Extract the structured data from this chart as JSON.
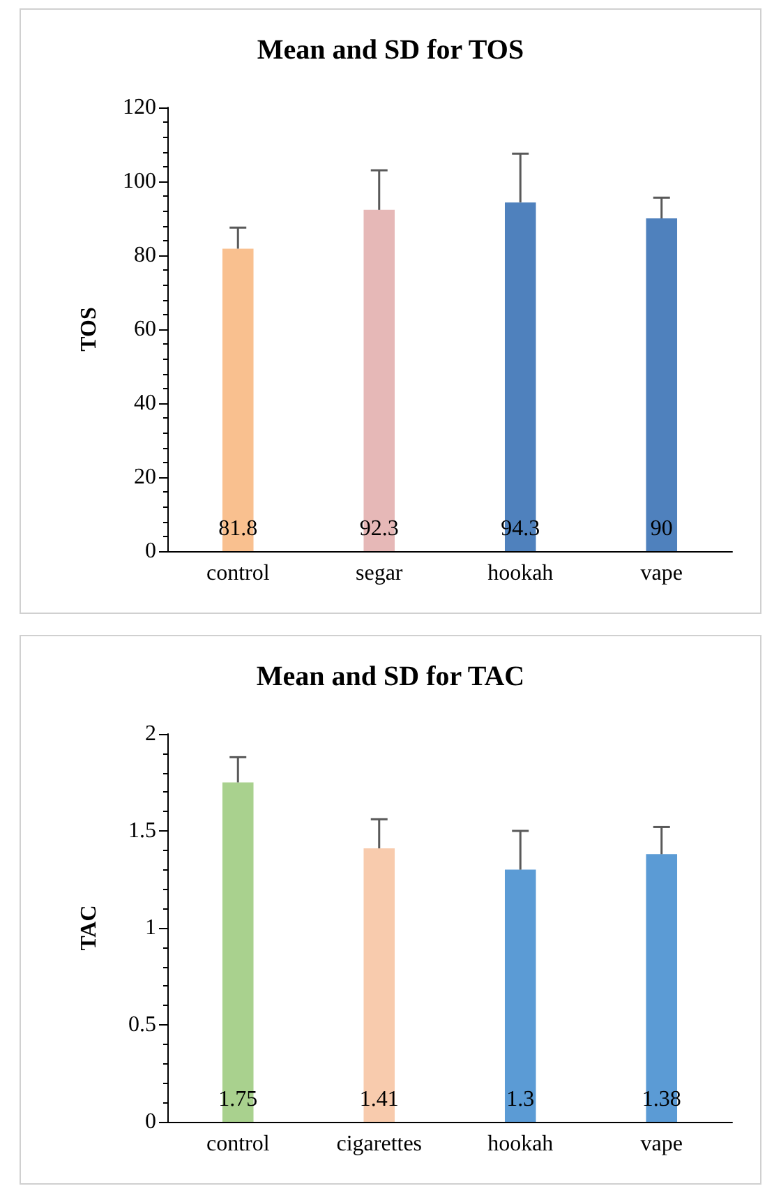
{
  "chart_data": [
    {
      "type": "bar",
      "title": "Mean and SD for TOS",
      "ylabel": "TOS",
      "categories": [
        "control",
        "segar",
        "hookah",
        "vape"
      ],
      "values": [
        81.8,
        92.3,
        94.3,
        90
      ],
      "colors": [
        "#f9c08f",
        "#e6b8b7",
        "#4f81bd",
        "#4f81bd"
      ],
      "errors": [
        5.7,
        10.7,
        13.2,
        5.6
      ],
      "ylim": [
        0,
        120
      ],
      "yticks": [
        0,
        20,
        40,
        60,
        80,
        100,
        120
      ],
      "data_labels": true
    },
    {
      "type": "bar",
      "title": "Mean and SD for TAC",
      "ylabel": "TAC",
      "categories": [
        "control",
        "cigarettes",
        "hookah",
        "vape"
      ],
      "values": [
        1.75,
        1.41,
        1.3,
        1.38
      ],
      "colors": [
        "#a9d18e",
        "#f8cbad",
        "#5b9bd5",
        "#5b9bd5"
      ],
      "errors": [
        0.13,
        0.15,
        0.2,
        0.14
      ],
      "ylim": [
        0,
        2
      ],
      "yticks": [
        0,
        0.5,
        1,
        1.5,
        2
      ],
      "data_labels": true
    }
  ]
}
